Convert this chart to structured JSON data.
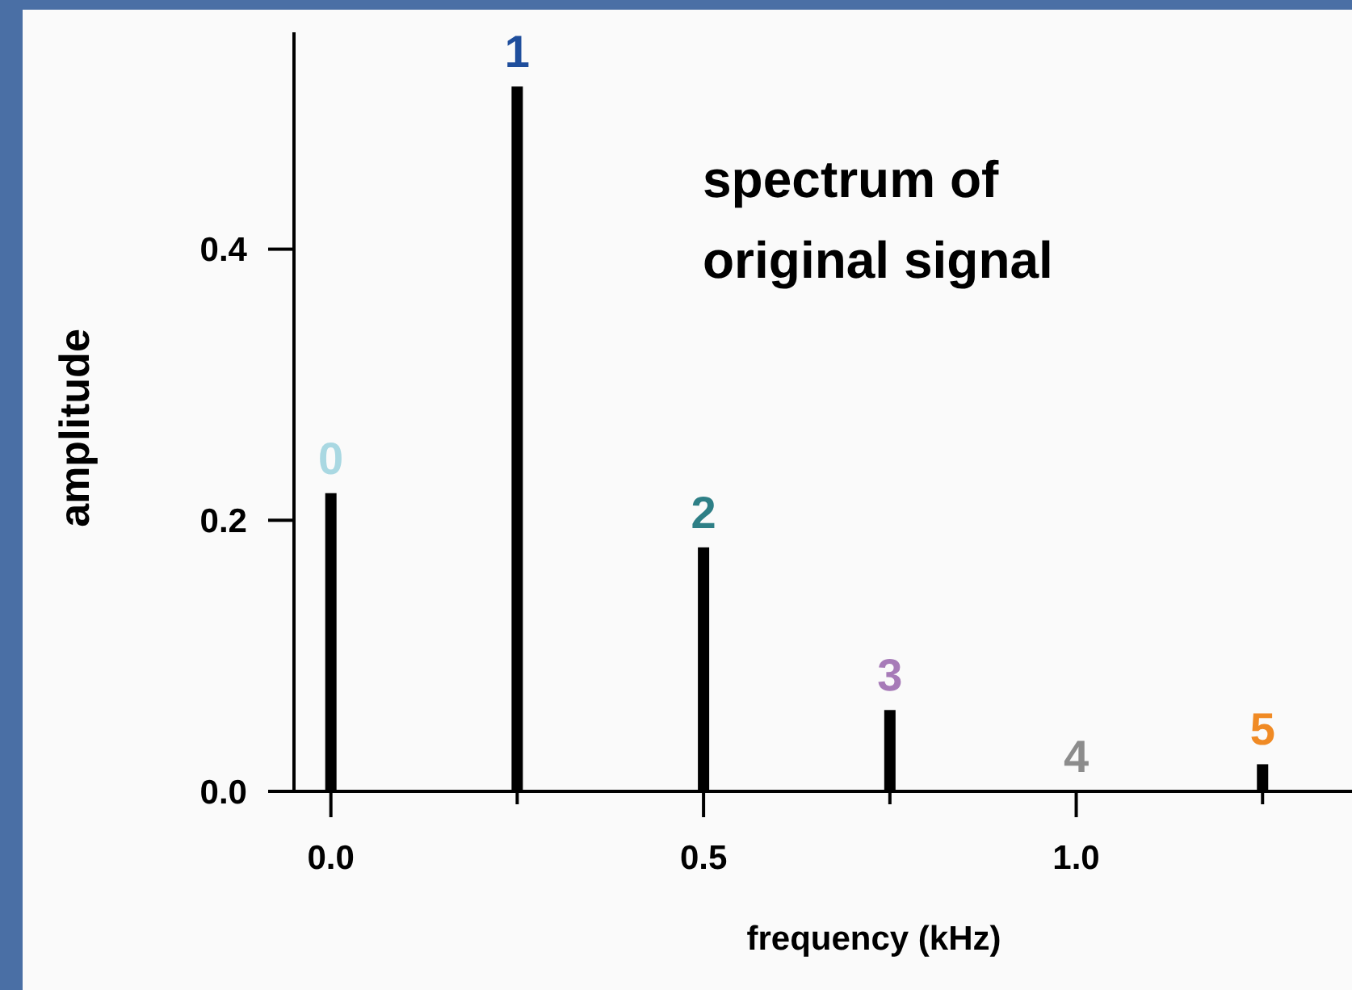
{
  "chart_data": {
    "type": "bar",
    "title": "spectrum of original signal",
    "xlabel": "frequency (kHz)",
    "ylabel": "amplitude",
    "x": [
      0,
      0.25,
      0.5,
      0.75,
      1.0,
      1.25
    ],
    "series": [
      {
        "color": "#000000",
        "values": [
          0.22,
          0.52,
          0.18,
          0.06,
          0,
          0.02
        ]
      }
    ],
    "annotations": [
      {
        "text": "0",
        "x": 0,
        "y": 0.22
      },
      {
        "text": "1",
        "x": 0.25,
        "y": 0.52
      },
      {
        "text": "2",
        "x": 0.5,
        "y": 0.18
      },
      {
        "text": "3",
        "x": 0.75,
        "y": 0.06
      },
      {
        "text": "4",
        "x": 1.0,
        "y": 0
      },
      {
        "text": "5",
        "x": 1.25,
        "y": 0.02
      }
    ],
    "xlim": [
      -0.082,
      1.37
    ],
    "ylim": [
      0,
      0.56
    ],
    "xticks": [
      {
        "value": 0,
        "label": "0.0"
      },
      {
        "value": 0.25,
        "label": null
      },
      {
        "value": 0.5,
        "label": "0.5"
      },
      {
        "value": 0.75,
        "label": null
      },
      {
        "value": 1.0,
        "label": "1.0"
      },
      {
        "value": 1.25,
        "label": null
      }
    ],
    "yticks": [
      {
        "value": 0,
        "label": "0.0"
      },
      {
        "value": 0.2,
        "label": "0.2"
      },
      {
        "value": 0.4,
        "label": "0.4"
      }
    ],
    "grid": false
  }
}
